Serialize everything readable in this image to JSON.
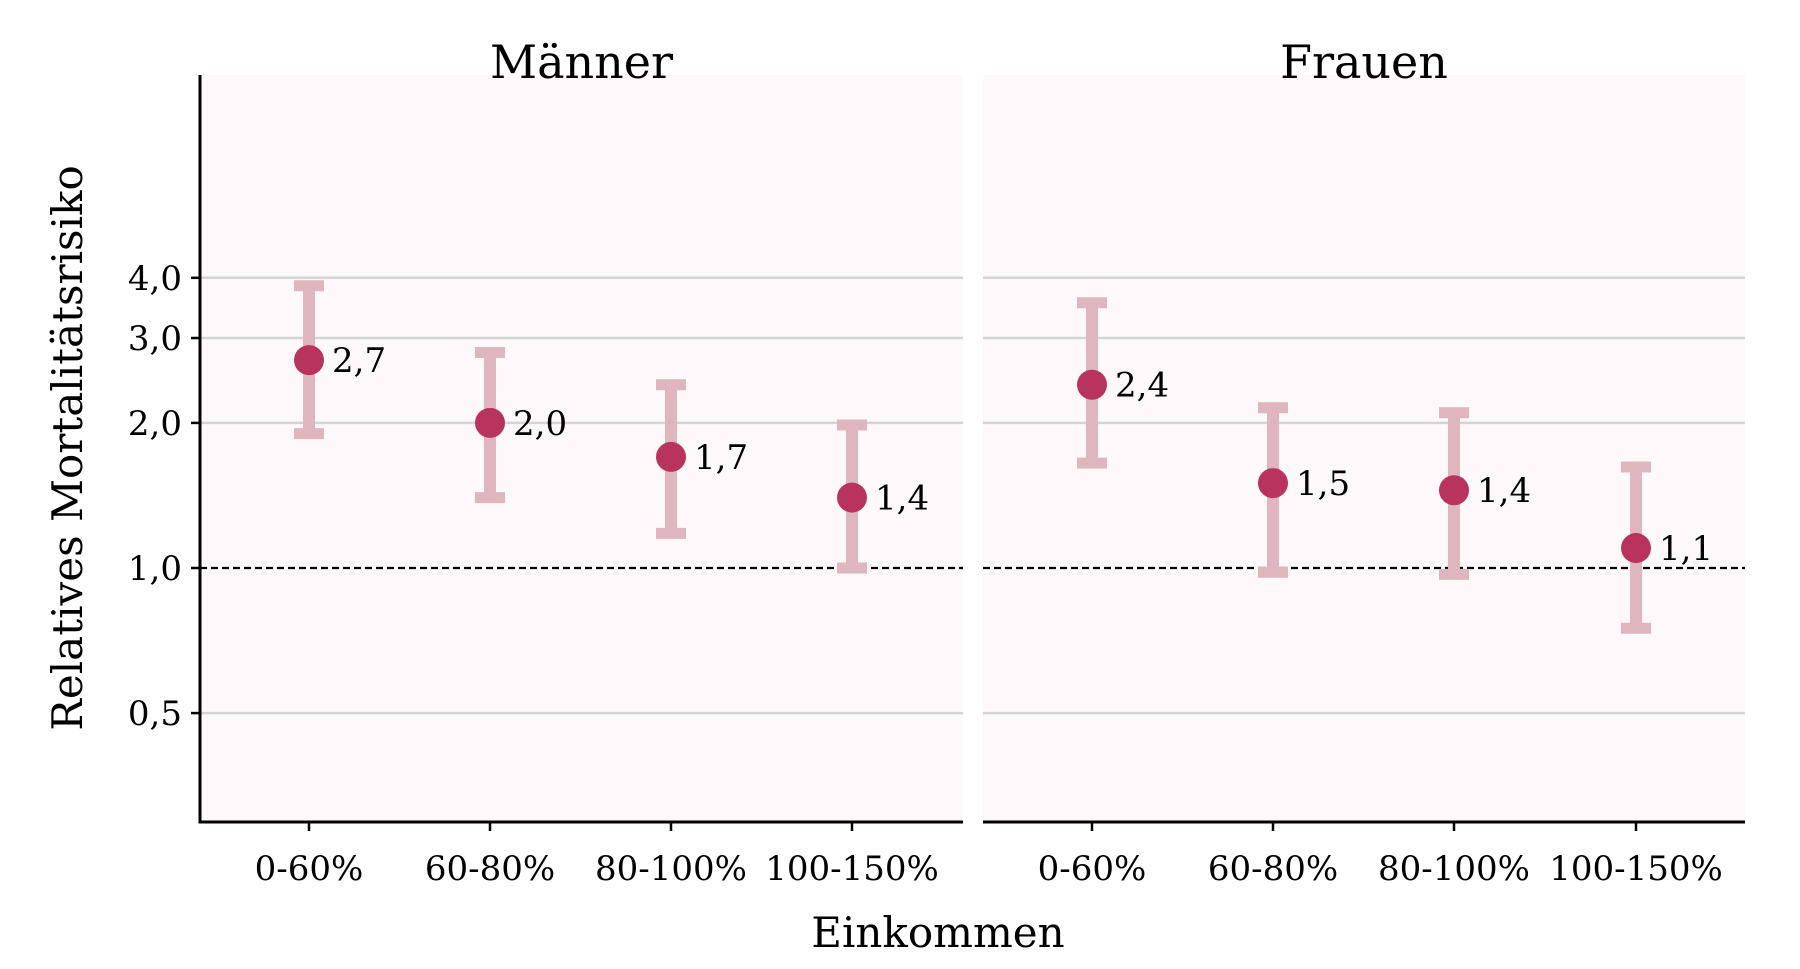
{
  "chart_data": {
    "type": "scatter",
    "ylabel": "Relatives Mortalitätsrisiko",
    "xlabel": "Einkommen",
    "y_scale": "log",
    "ylim": [
      0.47,
      4.15
    ],
    "y_ticks": [
      0.5,
      1.0,
      2.0,
      3.0,
      4.0
    ],
    "y_tick_labels": [
      "0,5",
      "1,0",
      "2,0",
      "3,0",
      "4,0"
    ],
    "reference_line": 1.0,
    "categories": [
      "0-60%",
      "60-80%",
      "80-100%",
      "100-150%"
    ],
    "colors": {
      "point": "#b8345e",
      "errorbar": "#dfb6c0",
      "panel_background": "#fdf9fb",
      "grid": "#d4d4d4",
      "reference_line": "#000000"
    },
    "panels": [
      {
        "title": "Männer",
        "values": [
          2.7,
          2.0,
          1.7,
          1.4
        ],
        "lower": [
          1.9,
          1.4,
          1.18,
          1.0
        ],
        "upper": [
          3.85,
          2.8,
          2.4,
          1.98
        ],
        "labels": [
          "2,7",
          "2,0",
          "1,7",
          "1,4"
        ]
      },
      {
        "title": "Frauen",
        "values": [
          2.4,
          1.5,
          1.45,
          1.1
        ],
        "lower": [
          1.65,
          0.98,
          0.97,
          0.75
        ],
        "upper": [
          3.55,
          2.15,
          2.1,
          1.62
        ],
        "labels": [
          "2,4",
          "1,5",
          "1,4",
          "1,1"
        ]
      }
    ]
  }
}
